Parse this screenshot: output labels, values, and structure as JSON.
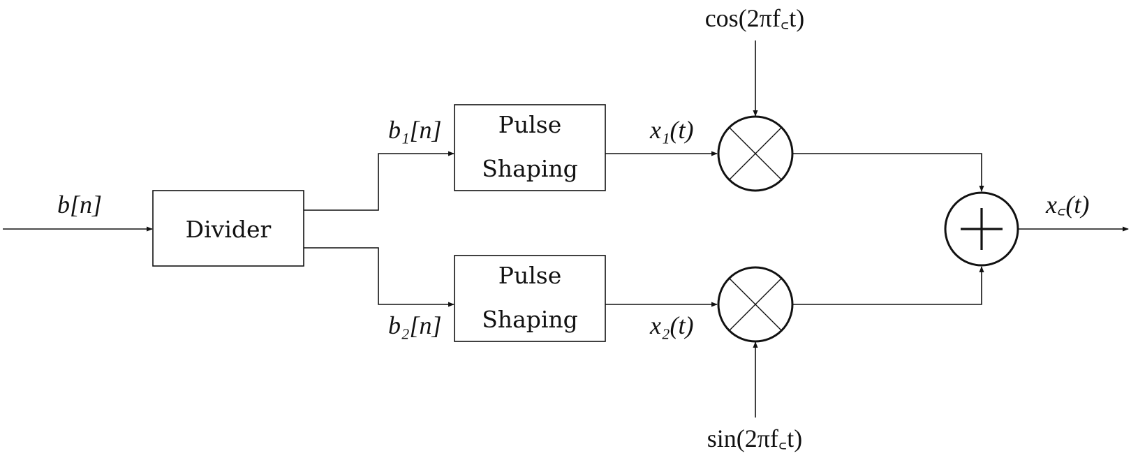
{
  "diagram": {
    "input_label": "b[n]",
    "divider_label": "Divider",
    "upper_branch_label": "b₁[n]",
    "lower_branch_label": "b₂[n]",
    "pulse_shaping_line1": "Pulse",
    "pulse_shaping_line2": "Shaping",
    "upper_signal_label": "x₁(t)",
    "lower_signal_label": "x₂(t)",
    "cos_carrier_label": "cos(2πf꜀t)",
    "sin_carrier_label": "sin(2πf꜀t)",
    "output_label": "x꜀(t)"
  }
}
